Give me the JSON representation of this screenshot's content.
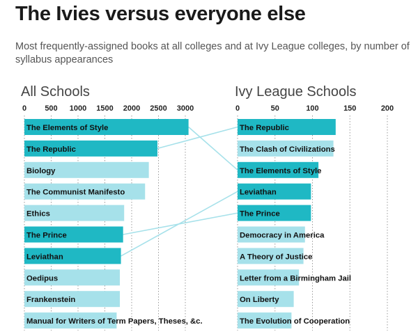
{
  "header": {
    "title": "The Ivies versus everyone else",
    "subtitle": "Most frequently-assigned books at all colleges and at Ivy League colleges, by number of syllabus appearances"
  },
  "colors": {
    "highlight": "#1fb8c4",
    "base": "#a6e1ea",
    "connector": "#a6e1ea",
    "grid": "#999999"
  },
  "chart_data": [
    {
      "type": "bar",
      "orientation": "horizontal",
      "title": "All Schools",
      "xlim": [
        0,
        3000
      ],
      "ticks": [
        "0",
        "500",
        "1000",
        "1500",
        "2000",
        "2500",
        "3000"
      ],
      "categories": [
        "The Elements of Style",
        "The Republic",
        "Biology",
        "The Communist Manifesto",
        "Ethics",
        "The Prince",
        "Leviathan",
        "Oedipus",
        "Frankenstein",
        "Manual for Writers of Term Papers, Theses, &c."
      ],
      "values": [
        3060,
        2480,
        2320,
        2250,
        1860,
        1840,
        1800,
        1780,
        1780,
        1720
      ],
      "highlighted": [
        true,
        true,
        false,
        false,
        false,
        true,
        true,
        false,
        false,
        false
      ],
      "grid": true
    },
    {
      "type": "bar",
      "orientation": "horizontal",
      "title": "Ivy League Schools",
      "xlim": [
        0,
        200
      ],
      "ticks": [
        "0",
        "50",
        "100",
        "150",
        "200"
      ],
      "categories": [
        "The Republic",
        "The Clash of Civilizations",
        "The Elements of Style",
        "Leviathan",
        "The Prince",
        "Democracy in America",
        "A Theory of Justice",
        "Letter from a Birmingham Jail",
        "On Liberty",
        "The Evolution of Cooperation"
      ],
      "values": [
        131,
        128,
        108,
        98,
        98,
        90,
        88,
        82,
        75,
        72
      ],
      "highlighted": [
        true,
        false,
        true,
        true,
        true,
        false,
        false,
        false,
        false,
        false
      ],
      "grid": true
    }
  ]
}
